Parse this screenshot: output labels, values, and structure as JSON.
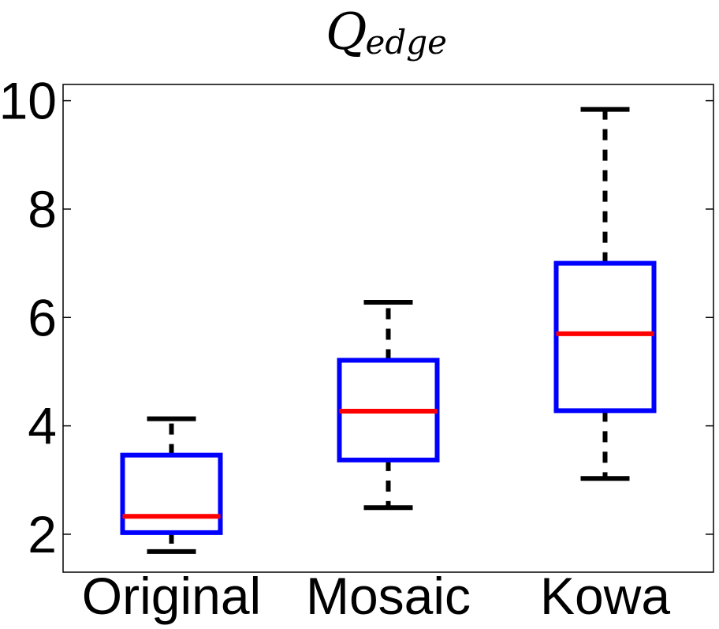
{
  "chart_data": {
    "type": "box",
    "title_main": "Q",
    "title_sub": "edge",
    "xlabel": "",
    "ylabel": "",
    "categories": [
      "Original",
      "Mosaic",
      "Kowa"
    ],
    "ylim": [
      1.3,
      10.3
    ],
    "yticks": [
      2,
      4,
      6,
      8,
      10
    ],
    "grid": false,
    "boxes": [
      {
        "name": "Original",
        "whisker_low": 1.68,
        "q1": 2.03,
        "median": 2.33,
        "q3": 3.46,
        "whisker_high": 4.13
      },
      {
        "name": "Mosaic",
        "whisker_low": 2.49,
        "q1": 3.37,
        "median": 4.27,
        "q3": 5.21,
        "whisker_high": 6.28
      },
      {
        "name": "Kowa",
        "whisker_low": 3.03,
        "q1": 4.28,
        "median": 5.7,
        "q3": 7.0,
        "whisker_high": 9.84
      }
    ],
    "colors": {
      "box": "#0000ff",
      "median": "#ff0000",
      "whisker": "#000000"
    }
  }
}
